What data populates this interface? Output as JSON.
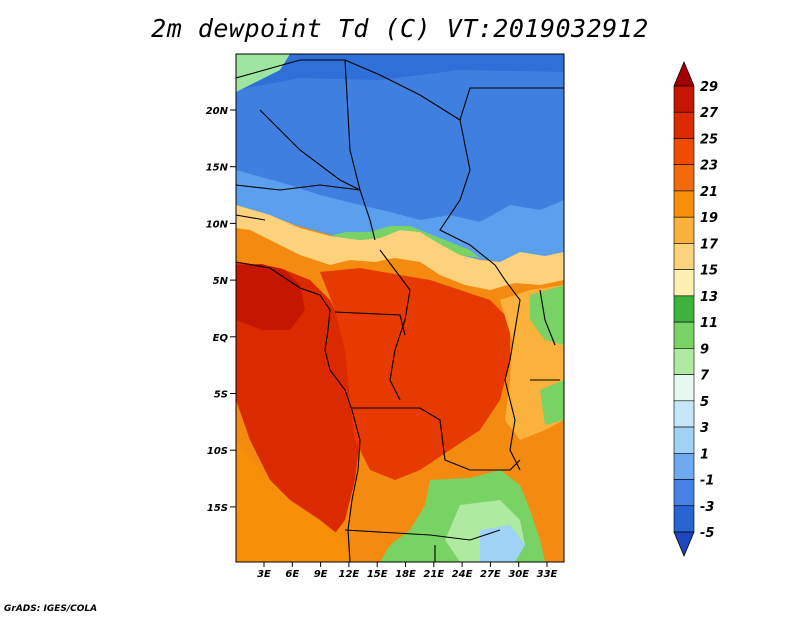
{
  "title": "2m dewpoint Td (C) VT:2019032912",
  "footer": "GrADS: IGES/COLA",
  "lat_labels": [
    "20N",
    "15N",
    "10N",
    "5N",
    "EQ",
    "5S",
    "10S",
    "15S"
  ],
  "lon_labels": [
    "3E",
    "6E",
    "9E",
    "12E",
    "15E",
    "18E",
    "21E",
    "24E",
    "27E",
    "30E",
    "33E"
  ],
  "colorbar": {
    "labels": [
      "29",
      "27",
      "25",
      "23",
      "21",
      "19",
      "17",
      "15",
      "13",
      "11",
      "9",
      "7",
      "5",
      "3",
      "1",
      "-1",
      "-3",
      "-5"
    ],
    "colors": [
      "#a50000",
      "#c41600",
      "#dc2a00",
      "#f04c00",
      "#f26a0c",
      "#f79008",
      "#fbb23c",
      "#fdd27c",
      "#fef0b0",
      "#3cb43c",
      "#78d264",
      "#aeeaa0",
      "#e6f8f0",
      "#c8e6fa",
      "#a0d2f6",
      "#6eaaf0",
      "#4682e6",
      "#2864d2",
      "#1e46be"
    ]
  }
}
